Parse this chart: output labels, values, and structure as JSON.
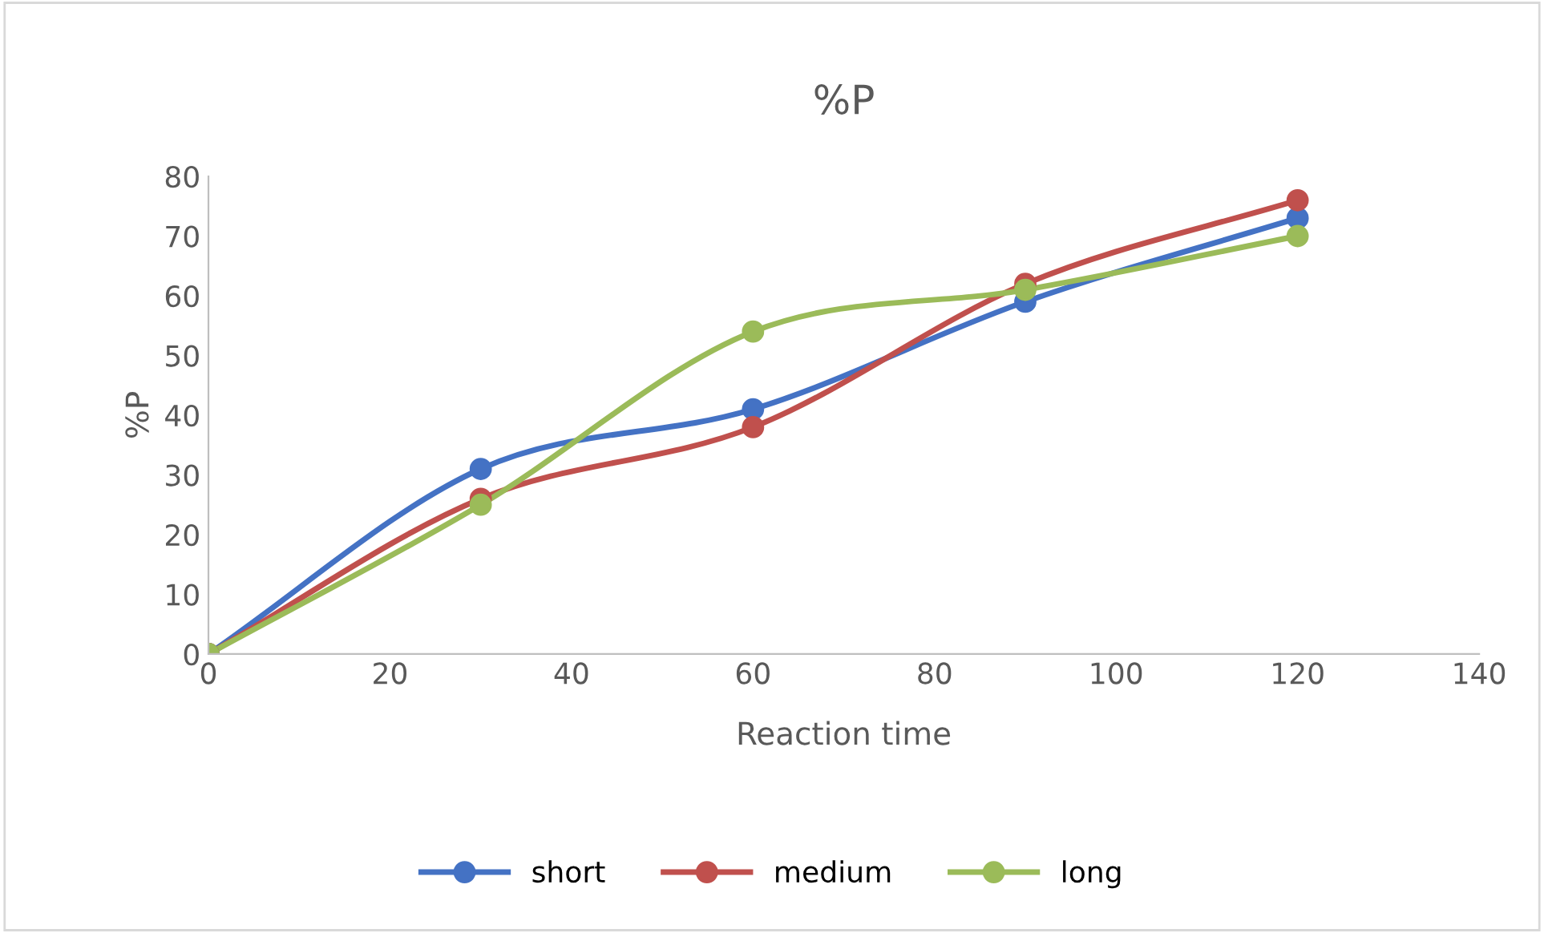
{
  "chart_data": {
    "type": "line",
    "title": "%P",
    "xlabel": "Reaction time",
    "ylabel": "%P",
    "x": [
      0,
      30,
      60,
      90,
      120
    ],
    "series": [
      {
        "name": "short",
        "color": "#4472c4",
        "values": [
          0,
          31,
          41,
          59,
          73
        ]
      },
      {
        "name": "medium",
        "color": "#c0504d",
        "values": [
          0,
          26,
          38,
          62,
          76
        ]
      },
      {
        "name": "long",
        "color": "#9bbb59",
        "values": [
          0,
          25,
          54,
          61,
          70
        ]
      }
    ],
    "xlim": [
      0,
      140
    ],
    "xticks": [
      0,
      20,
      40,
      60,
      80,
      100,
      120,
      140
    ],
    "ylim": [
      0,
      80
    ],
    "yticks": [
      0,
      10,
      20,
      30,
      40,
      50,
      60,
      70,
      80
    ],
    "grid": false,
    "legend": "bottom",
    "marker": "circle",
    "line_style": "solid"
  }
}
